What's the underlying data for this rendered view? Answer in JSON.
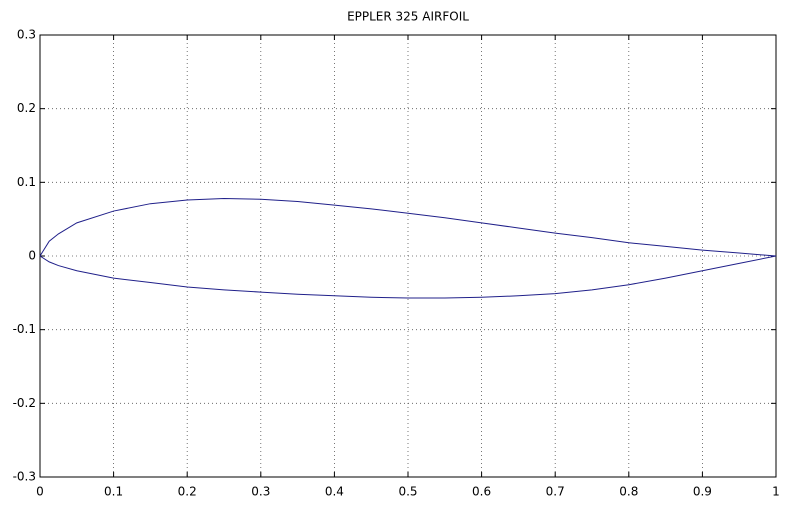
{
  "chart_data": {
    "type": "line",
    "title": "EPPLER 325 AIRFOIL",
    "x": [
      0,
      0.0125,
      0.025,
      0.05,
      0.1,
      0.15,
      0.2,
      0.25,
      0.3,
      0.35,
      0.4,
      0.45,
      0.5,
      0.55,
      0.6,
      0.65,
      0.7,
      0.75,
      0.8,
      0.85,
      0.9,
      0.95,
      1
    ],
    "series": [
      {
        "color": "#20208a",
        "values": [
          0,
          0.02,
          0.03,
          0.045,
          0.061,
          0.071,
          0.076,
          0.078,
          0.077,
          0.074,
          0.069,
          0.064,
          0.058,
          0.052,
          0.045,
          0.038,
          0.031,
          0.025,
          0.018,
          0.013,
          0.008,
          0.004,
          0
        ]
      },
      {
        "color": "#20208a",
        "values": [
          0,
          -0.008,
          -0.013,
          -0.02,
          -0.03,
          -0.036,
          -0.042,
          -0.046,
          -0.049,
          -0.052,
          -0.054,
          -0.056,
          -0.057,
          -0.057,
          -0.056,
          -0.054,
          -0.051,
          -0.046,
          -0.039,
          -0.03,
          -0.02,
          -0.01,
          0
        ]
      }
    ],
    "xlim": [
      0,
      1
    ],
    "ylim": [
      -0.3,
      0.3
    ],
    "xticks": [
      0,
      0.1,
      0.2,
      0.3,
      0.4,
      0.5,
      0.6,
      0.7,
      0.8,
      0.9,
      1
    ],
    "yticks": [
      -0.3,
      -0.2,
      -0.1,
      0,
      0.1,
      0.2,
      0.3
    ],
    "grid": true
  }
}
